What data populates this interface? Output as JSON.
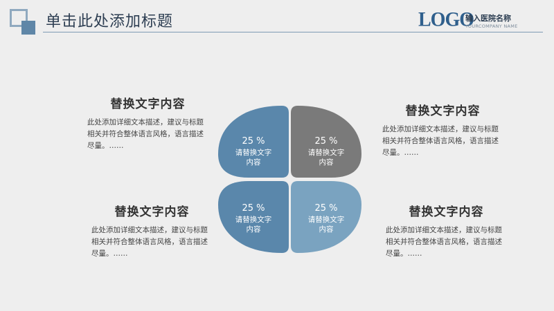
{
  "header": {
    "title": "单击此处添加标题",
    "logo": "LOGO",
    "school_name": "输入医院名称",
    "company_name": "YOURCOMPANY NAME"
  },
  "blocks": [
    {
      "heading": "替换文字内容",
      "body": "此处添加详细文本描述，建议与标题相关并符合整体语言风格，语言描述尽量。……"
    },
    {
      "heading": "替换文字内容",
      "body": "此处添加详细文本描述，建议与标题相关并符合整体语言风格，语言描述尽量。……"
    },
    {
      "heading": "替换文字内容",
      "body": "此处添加详细文本描述，建议与标题相关并符合整体语言风格，语言描述尽量。……"
    },
    {
      "heading": "替换文字内容",
      "body": "此处添加详细文本描述，建议与标题相关并符合整体语言风格，语言描述尽量。……"
    }
  ],
  "petals": [
    {
      "percent": "25 %",
      "label": "请替换文字内容",
      "color": "#5a87ab"
    },
    {
      "percent": "25 %",
      "label": "请替换文字内容",
      "color": "#7a7a7a"
    },
    {
      "percent": "25 %",
      "label": "请替换文字内容",
      "color": "#5a87ab"
    },
    {
      "percent": "25 %",
      "label": "请替换文字内容",
      "color": "#7aa3c0"
    }
  ],
  "colors": {
    "background": "#eeeeee",
    "accent": "#5f86a7",
    "header_line": "#7e9ab3"
  }
}
